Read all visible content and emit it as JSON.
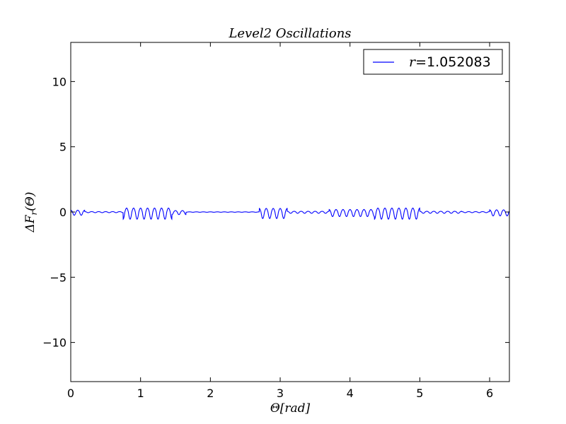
{
  "chart_data": {
    "type": "line",
    "title": "Level2 Oscillations",
    "xlabel": "Θ[rad]",
    "ylabel": "ΔF_r(Θ)",
    "xlim": [
      0,
      6.2832
    ],
    "ylim": [
      -13,
      13
    ],
    "xticks": [
      0,
      1,
      2,
      3,
      4,
      5,
      6
    ],
    "xtick_labels": [
      "0",
      "1",
      "2",
      "3",
      "4",
      "5",
      "6"
    ],
    "yticks": [
      -10,
      -5,
      0,
      5,
      10
    ],
    "ytick_labels": [
      "−10",
      "−5",
      "0",
      "5",
      "10"
    ],
    "grid": false,
    "legend_position": "top-right",
    "series": [
      {
        "name": "r=1.052083",
        "color": "#0000ff",
        "description": "small oscillations around zero with varying amplitude",
        "envelope_regions": [
          {
            "x_start": 0.0,
            "x_end": 0.2,
            "amplitude": 0.25
          },
          {
            "x_start": 0.2,
            "x_end": 0.75,
            "amplitude": 0.05
          },
          {
            "x_start": 0.75,
            "x_end": 1.45,
            "amplitude": 0.55
          },
          {
            "x_start": 1.45,
            "x_end": 1.65,
            "amplitude": 0.2
          },
          {
            "x_start": 1.65,
            "x_end": 2.7,
            "amplitude": 0.02
          },
          {
            "x_start": 2.7,
            "x_end": 3.1,
            "amplitude": 0.5
          },
          {
            "x_start": 3.1,
            "x_end": 3.7,
            "amplitude": 0.1
          },
          {
            "x_start": 3.7,
            "x_end": 4.35,
            "amplitude": 0.35
          },
          {
            "x_start": 4.35,
            "x_end": 5.0,
            "amplitude": 0.55
          },
          {
            "x_start": 5.0,
            "x_end": 5.6,
            "amplitude": 0.1
          },
          {
            "x_start": 5.6,
            "x_end": 6.0,
            "amplitude": 0.05
          },
          {
            "x_start": 6.0,
            "x_end": 6.2832,
            "amplitude": 0.3
          }
        ],
        "oscillation_period": 0.1
      }
    ]
  }
}
